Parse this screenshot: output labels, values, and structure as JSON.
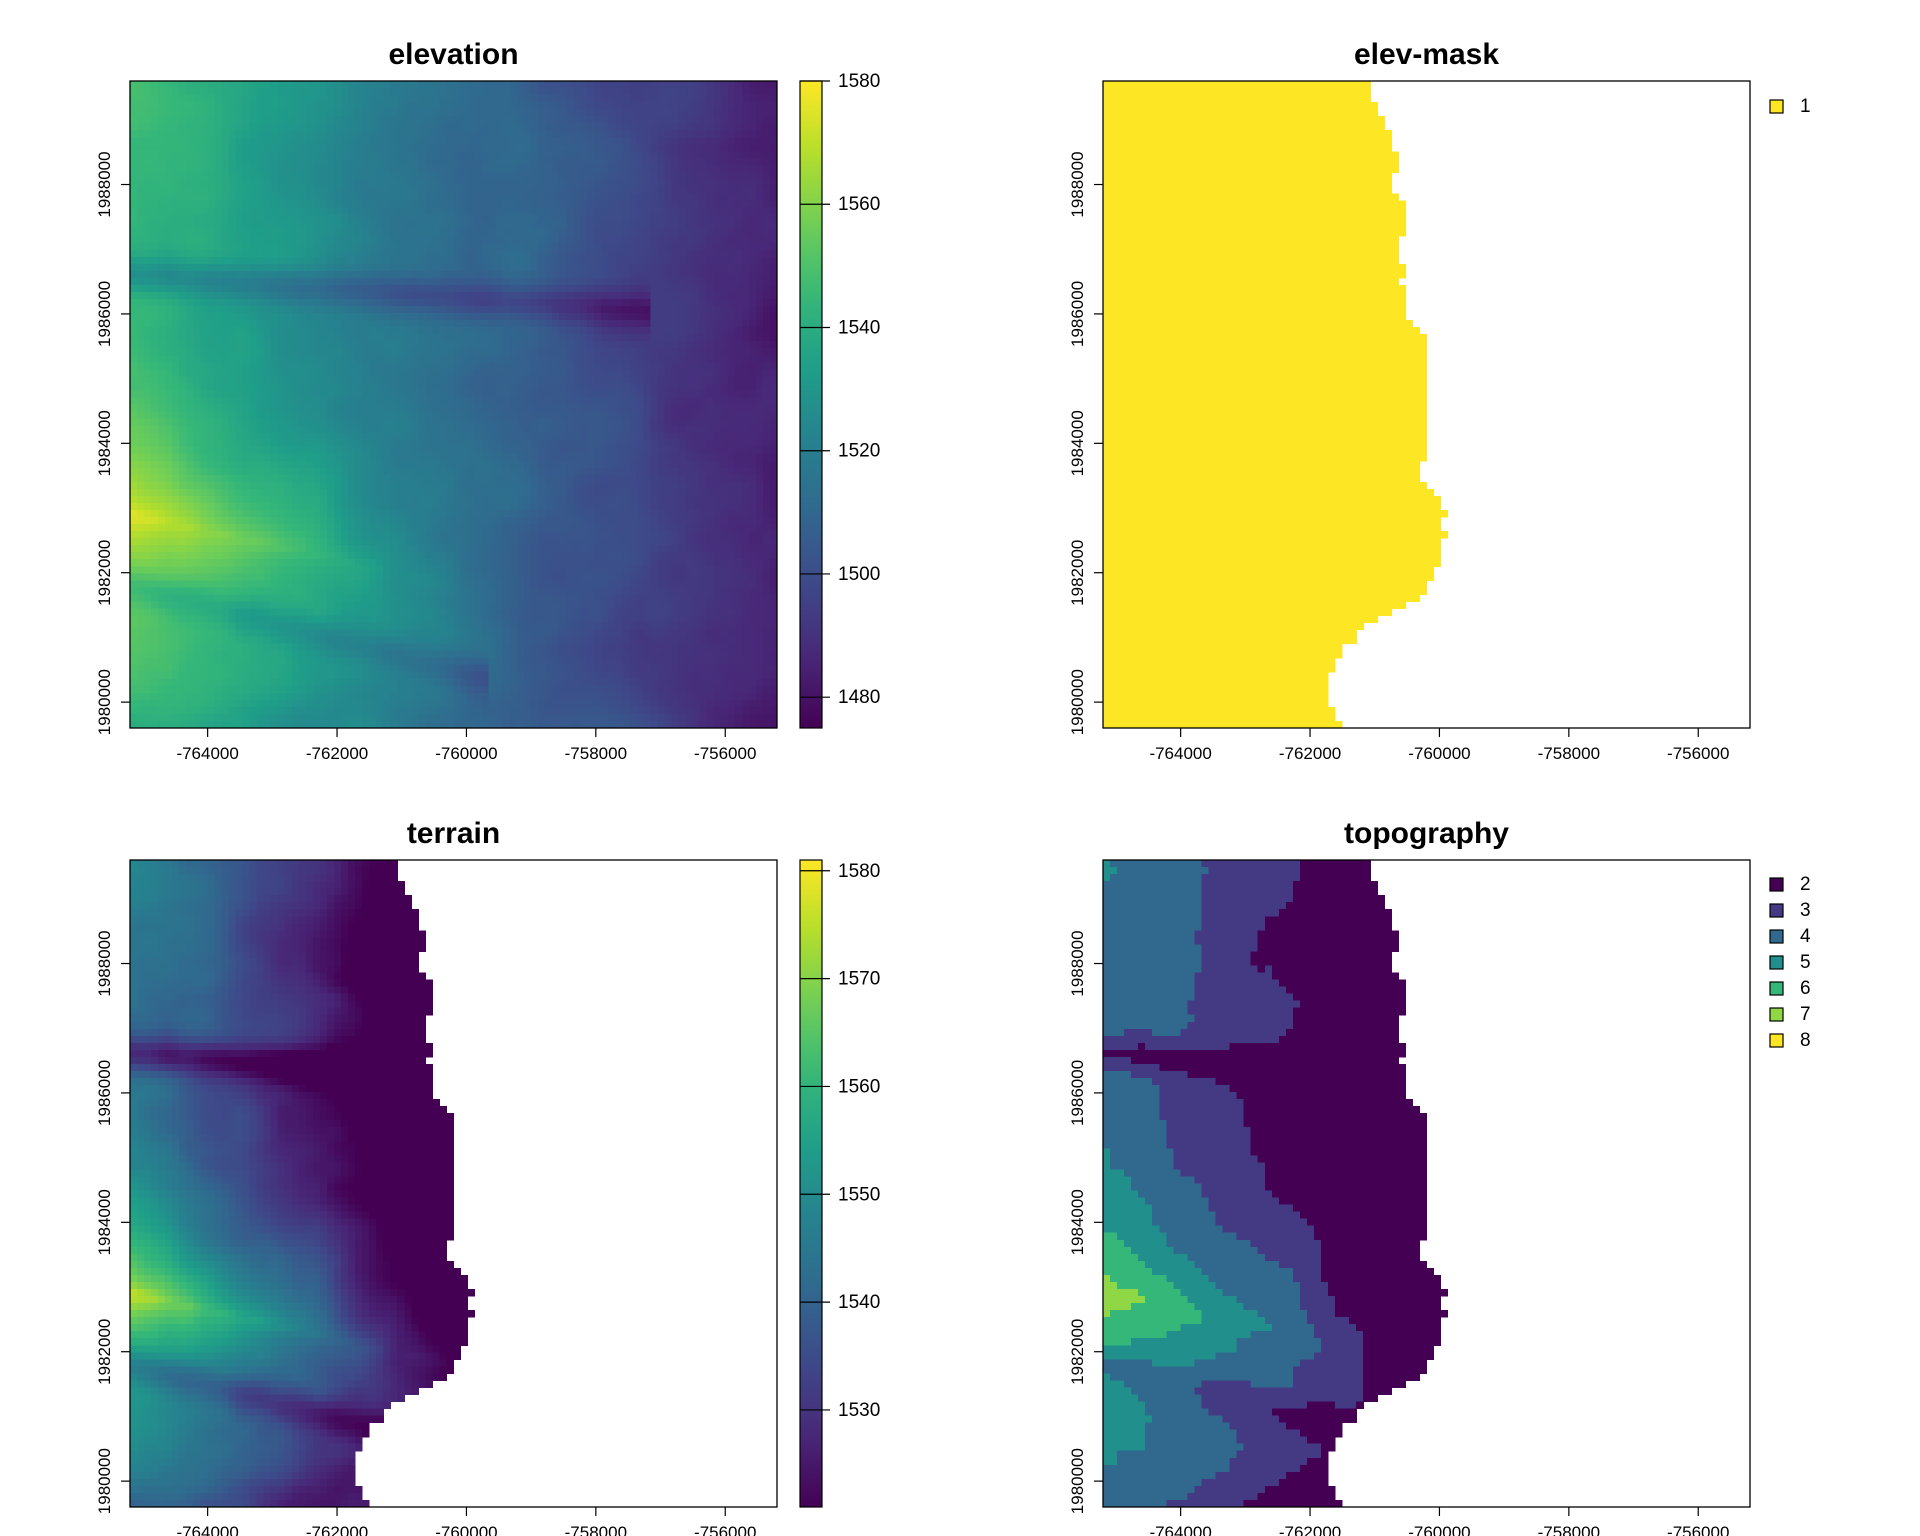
{
  "figure": {
    "colors": {
      "viridis": [
        "#440154",
        "#482878",
        "#3e4989",
        "#31688e",
        "#26828e",
        "#1f9e89",
        "#35b779",
        "#6ece58",
        "#b5de2b",
        "#fde725"
      ],
      "mask_yellow": "#fde725",
      "axis": "#000000",
      "background": "#ffffff"
    }
  },
  "chart_data": [
    {
      "id": "elevation",
      "type": "heatmap",
      "title": "elevation",
      "xlabel": "",
      "ylabel": "",
      "xlim": [
        -765200,
        -755200
      ],
      "ylim": [
        1979600,
        1989600
      ],
      "x_ticks": [
        "-764000",
        "-762000",
        "-760000",
        "-758000",
        "-756000"
      ],
      "y_ticks": [
        "1980000",
        "1982000",
        "1984000",
        "1986000",
        "1988000"
      ],
      "legend": {
        "kind": "continuous",
        "range": [
          1475,
          1580
        ],
        "ticks": [
          "1480",
          "1500",
          "1520",
          "1540",
          "1560",
          "1580"
        ]
      },
      "value_range": [
        1475,
        1580
      ],
      "description_values": {
        "west_edge_max": 1578,
        "east_edge_min": 1476
      },
      "coverage": "full"
    },
    {
      "id": "elev-mask",
      "type": "heatmap",
      "title": "elev-mask",
      "xlabel": "",
      "ylabel": "",
      "xlim": [
        -765200,
        -755200
      ],
      "ylim": [
        1979600,
        1989600
      ],
      "x_ticks": [
        "-764000",
        "-762000",
        "-760000",
        "-758000",
        "-756000"
      ],
      "y_ticks": [
        "1980000",
        "1982000",
        "1984000",
        "1986000",
        "1988000"
      ],
      "legend": {
        "kind": "categorical",
        "entries": [
          {
            "label": "1",
            "color": "#fde725"
          }
        ]
      },
      "mask_boundary_x": [
        [
          1989600,
          -761130
        ],
        [
          1989000,
          -760880
        ],
        [
          1988400,
          -760620
        ],
        [
          1988000,
          -760760
        ],
        [
          1987600,
          -760550
        ],
        [
          1987000,
          -760580
        ],
        [
          1986400,
          -760500
        ],
        [
          1986000,
          -760460
        ],
        [
          1985600,
          -760240
        ],
        [
          1985000,
          -760220
        ],
        [
          1984400,
          -760140
        ],
        [
          1984000,
          -760180
        ],
        [
          1983600,
          -760360
        ],
        [
          1983000,
          -759860
        ],
        [
          1982400,
          -759920
        ],
        [
          1982000,
          -760030
        ],
        [
          1981600,
          -760340
        ],
        [
          1981200,
          -761100
        ],
        [
          1980800,
          -761510
        ],
        [
          1980400,
          -761750
        ],
        [
          1980000,
          -761700
        ],
        [
          1979600,
          -761450
        ]
      ]
    },
    {
      "id": "terrain",
      "type": "heatmap",
      "title": "terrain",
      "xlabel": "",
      "ylabel": "",
      "xlim": [
        -765200,
        -755200
      ],
      "ylim": [
        1979600,
        1989600
      ],
      "x_ticks": [
        "-764000",
        "-762000",
        "-760000",
        "-758000",
        "-756000"
      ],
      "y_ticks": [
        "1980000",
        "1982000",
        "1984000",
        "1986000",
        "1988000"
      ],
      "legend": {
        "kind": "continuous",
        "range": [
          1521,
          1581
        ],
        "ticks": [
          "1530",
          "1540",
          "1550",
          "1560",
          "1570",
          "1580"
        ]
      },
      "value_range": [
        1521,
        1581
      ]
    },
    {
      "id": "topography",
      "type": "heatmap",
      "title": "topography",
      "xlabel": "",
      "ylabel": "",
      "xlim": [
        -765200,
        -755200
      ],
      "ylim": [
        1979600,
        1989600
      ],
      "x_ticks": [
        "-764000",
        "-762000",
        "-760000",
        "-758000",
        "-756000"
      ],
      "y_ticks": [
        "1980000",
        "1982000",
        "1984000",
        "1986000",
        "1988000"
      ],
      "legend": {
        "kind": "categorical",
        "entries": [
          {
            "label": "2",
            "color": "#440154"
          },
          {
            "label": "3",
            "color": "#443a83"
          },
          {
            "label": "4",
            "color": "#31688e"
          },
          {
            "label": "5",
            "color": "#21908c"
          },
          {
            "label": "6",
            "color": "#35b779"
          },
          {
            "label": "7",
            "color": "#8fd744"
          },
          {
            "label": "8",
            "color": "#fde725"
          }
        ]
      },
      "class_breaks": [
        1530,
        1540,
        1550,
        1560,
        1570,
        1580
      ]
    }
  ]
}
